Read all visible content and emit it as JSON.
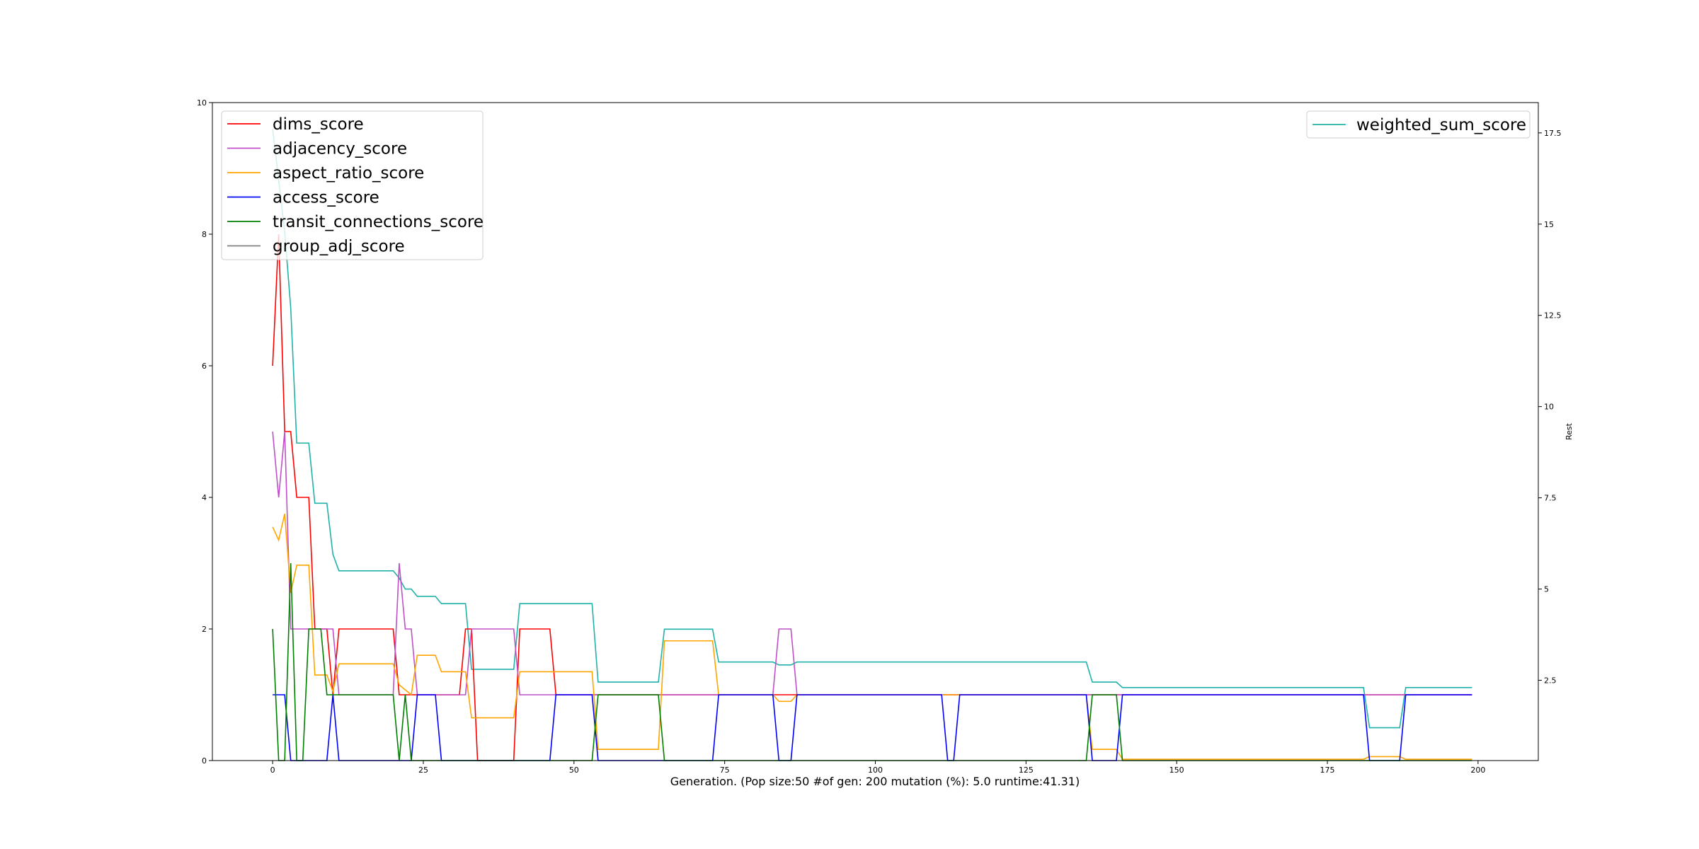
{
  "chart_data": {
    "type": "line",
    "xlabel": "Generation. (Pop size:50 #of gen: 200 mutation (%): 5.0 runtime:41.31)",
    "ylabel_left": "",
    "ylabel_right": "Rest",
    "xlim": [
      -10,
      210
    ],
    "ylim_left": [
      0,
      10
    ],
    "ylim_right": [
      0.3,
      18.33
    ],
    "x_ticks": [
      0,
      25,
      50,
      75,
      100,
      125,
      150,
      175,
      200
    ],
    "y_ticks_left": [
      0,
      2,
      4,
      6,
      8,
      10
    ],
    "y_ticks_right": [
      2.5,
      5.0,
      7.5,
      10.0,
      12.5,
      15.0,
      17.5
    ],
    "grid": false,
    "legend_left_position": "upper-left",
    "legend_right_position": "upper-right",
    "series_left": [
      {
        "name": "dims_score",
        "color": "#ff0000",
        "points": [
          [
            0,
            6
          ],
          [
            1,
            8
          ],
          [
            2,
            5
          ],
          [
            3,
            5
          ],
          [
            4,
            4
          ],
          [
            5,
            4
          ],
          [
            6,
            4
          ],
          [
            7,
            2
          ],
          [
            8,
            2
          ],
          [
            9,
            2
          ],
          [
            10,
            1
          ],
          [
            11,
            2
          ],
          [
            20,
            2
          ],
          [
            21,
            1
          ],
          [
            31,
            1
          ],
          [
            32,
            2
          ],
          [
            33,
            2
          ],
          [
            34,
            0
          ],
          [
            40,
            0
          ],
          [
            41,
            2
          ],
          [
            46,
            2
          ],
          [
            47,
            1
          ],
          [
            86,
            1
          ],
          [
            87,
            1
          ],
          [
            88,
            1
          ],
          [
            199,
            1
          ]
        ]
      },
      {
        "name": "adjacency_score",
        "color": "#bf50c8",
        "points": [
          [
            0,
            5
          ],
          [
            1,
            4
          ],
          [
            2,
            5
          ],
          [
            3,
            2
          ],
          [
            10,
            2
          ],
          [
            11,
            1
          ],
          [
            20,
            1
          ],
          [
            21,
            3
          ],
          [
            22,
            2
          ],
          [
            23,
            2
          ],
          [
            24,
            1
          ],
          [
            32,
            1
          ],
          [
            33,
            2
          ],
          [
            40,
            2
          ],
          [
            41,
            1
          ],
          [
            83,
            1
          ],
          [
            84,
            2
          ],
          [
            86,
            2
          ],
          [
            87,
            1
          ],
          [
            199,
            1
          ]
        ]
      },
      {
        "name": "aspect_ratio_score",
        "color": "#ffa500",
        "points": [
          [
            0,
            3.55
          ],
          [
            1,
            3.35
          ],
          [
            2,
            3.75
          ],
          [
            3,
            2.55
          ],
          [
            4,
            2.97
          ],
          [
            6,
            2.97
          ],
          [
            7,
            1.3
          ],
          [
            9,
            1.3
          ],
          [
            10,
            1.05
          ],
          [
            11,
            1.47
          ],
          [
            20,
            1.47
          ],
          [
            21,
            1.15
          ],
          [
            23,
            1.0
          ],
          [
            24,
            1.6
          ],
          [
            27,
            1.6
          ],
          [
            28,
            1.35
          ],
          [
            32,
            1.35
          ],
          [
            33,
            0.65
          ],
          [
            40,
            0.65
          ],
          [
            41,
            1.35
          ],
          [
            53,
            1.35
          ],
          [
            54,
            0.17
          ],
          [
            64,
            0.17
          ],
          [
            65,
            1.82
          ],
          [
            73,
            1.82
          ],
          [
            74,
            1.0
          ],
          [
            83,
            1.0
          ],
          [
            84,
            0.9
          ],
          [
            86,
            0.9
          ],
          [
            87,
            1.0
          ],
          [
            135,
            1.0
          ],
          [
            136,
            0.17
          ],
          [
            140,
            0.17
          ],
          [
            141,
            0.02
          ],
          [
            181,
            0.02
          ],
          [
            182,
            0.06
          ],
          [
            187,
            0.06
          ],
          [
            188,
            0.02
          ],
          [
            199,
            0.02
          ]
        ]
      },
      {
        "name": "access_score",
        "color": "#0000ff",
        "points": [
          [
            0,
            1
          ],
          [
            2,
            1
          ],
          [
            3,
            0
          ],
          [
            9,
            0
          ],
          [
            10,
            1
          ],
          [
            11,
            0
          ],
          [
            23,
            0
          ],
          [
            24,
            1
          ],
          [
            27,
            1
          ],
          [
            28,
            0
          ],
          [
            46,
            0
          ],
          [
            47,
            1
          ],
          [
            53,
            1
          ],
          [
            54,
            0
          ],
          [
            73,
            0
          ],
          [
            74,
            1
          ],
          [
            83,
            1
          ],
          [
            84,
            0
          ],
          [
            86,
            0
          ],
          [
            87,
            1
          ],
          [
            111,
            1
          ],
          [
            112,
            0
          ],
          [
            113,
            0
          ],
          [
            114,
            1
          ],
          [
            135,
            1
          ],
          [
            136,
            0
          ],
          [
            140,
            0
          ],
          [
            141,
            1
          ],
          [
            181,
            1
          ],
          [
            182,
            0
          ],
          [
            187,
            0
          ],
          [
            188,
            1
          ],
          [
            199,
            1
          ]
        ]
      },
      {
        "name": "transit_connections_score",
        "color": "#008000",
        "points": [
          [
            0,
            2
          ],
          [
            1,
            0
          ],
          [
            2,
            0
          ],
          [
            3,
            3
          ],
          [
            4,
            0
          ],
          [
            5,
            0
          ],
          [
            6,
            2
          ],
          [
            8,
            2
          ],
          [
            9,
            1
          ],
          [
            20,
            1
          ],
          [
            21,
            0
          ],
          [
            22,
            1
          ],
          [
            23,
            0
          ],
          [
            53,
            0
          ],
          [
            54,
            1
          ],
          [
            64,
            1
          ],
          [
            65,
            0
          ],
          [
            135,
            0
          ],
          [
            136,
            1
          ],
          [
            140,
            1
          ],
          [
            141,
            0
          ],
          [
            199,
            0
          ]
        ]
      },
      {
        "name": "group_adj_score",
        "color": "#808080",
        "points": []
      }
    ],
    "series_right": [
      {
        "name": "weighted_sum_score",
        "color": "#20b2aa",
        "points": [
          [
            0,
            17.6
          ],
          [
            1,
            16.2
          ],
          [
            2,
            14.8
          ],
          [
            3,
            12.7
          ],
          [
            4,
            9.0
          ],
          [
            6,
            9.0
          ],
          [
            7,
            7.35
          ],
          [
            9,
            7.35
          ],
          [
            10,
            5.95
          ],
          [
            11,
            5.5
          ],
          [
            20,
            5.5
          ],
          [
            21,
            5.3
          ],
          [
            22,
            5.0
          ],
          [
            23,
            5.0
          ],
          [
            24,
            4.8
          ],
          [
            27,
            4.8
          ],
          [
            28,
            4.6
          ],
          [
            32,
            4.6
          ],
          [
            33,
            2.8
          ],
          [
            40,
            2.8
          ],
          [
            41,
            4.6
          ],
          [
            53,
            4.6
          ],
          [
            54,
            2.45
          ],
          [
            64,
            2.45
          ],
          [
            65,
            3.9
          ],
          [
            73,
            3.9
          ],
          [
            74,
            3.0
          ],
          [
            83,
            3.0
          ],
          [
            84,
            2.92
          ],
          [
            86,
            2.92
          ],
          [
            87,
            3.0
          ],
          [
            135,
            3.0
          ],
          [
            136,
            2.45
          ],
          [
            140,
            2.45
          ],
          [
            141,
            2.3
          ],
          [
            181,
            2.3
          ],
          [
            182,
            1.2
          ],
          [
            187,
            1.2
          ],
          [
            188,
            2.3
          ],
          [
            199,
            2.3
          ]
        ]
      }
    ]
  }
}
